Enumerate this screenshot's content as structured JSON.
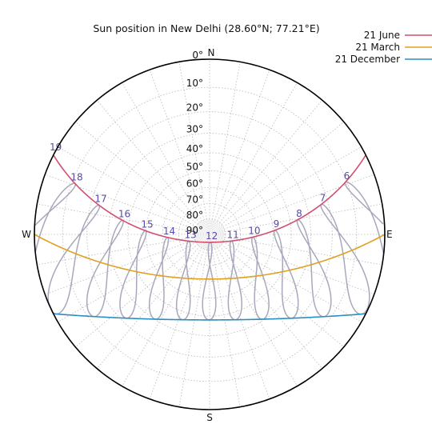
{
  "chart_data": {
    "type": "polar-sunpath",
    "title": "Sun position in New Delhi (28.60°N; 77.21°E)",
    "directions": {
      "north": "N",
      "south": "S",
      "east": "E",
      "west": "W"
    },
    "altitude_ticks": [
      {
        "value": 0,
        "label": "0°"
      },
      {
        "value": 10,
        "label": "10°"
      },
      {
        "value": 20,
        "label": "20°"
      },
      {
        "value": 30,
        "label": "30°"
      },
      {
        "value": 40,
        "label": "40°"
      },
      {
        "value": 50,
        "label": "50°"
      },
      {
        "value": 60,
        "label": "60°"
      },
      {
        "value": 70,
        "label": "70°"
      },
      {
        "value": 80,
        "label": "80°"
      },
      {
        "value": 90,
        "label": "90°"
      }
    ],
    "azimuth_grid_step_deg": 10,
    "grid": true,
    "legend_position": "top-right",
    "series": [
      {
        "name": "21 June",
        "color": "#d0506e",
        "declination": 23.44
      },
      {
        "name": "21 March",
        "color": "#e0a020",
        "declination": 0
      },
      {
        "name": "21 December",
        "color": "#2a8fc0",
        "declination": -23.44
      }
    ],
    "analemma_color": "#a8a8bc",
    "hour_label_color": "#5a4aaa",
    "hour_labels": [
      "6",
      "7",
      "8",
      "9",
      "10",
      "11",
      "12",
      "13",
      "14",
      "15",
      "16",
      "17",
      "18",
      "19"
    ]
  }
}
